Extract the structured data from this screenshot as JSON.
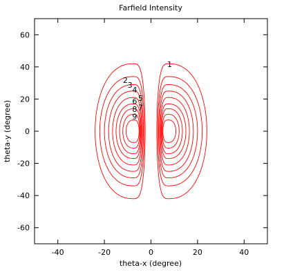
{
  "chart_data": {
    "type": "contour",
    "title": "Farfield Intensity",
    "xlabel": "theta-x (degree)",
    "ylabel": "theta-y (degree)",
    "xlim": [
      -50,
      50
    ],
    "ylim": [
      -70,
      70
    ],
    "xticks": [
      -40,
      -20,
      0,
      20,
      40
    ],
    "yticks": [
      -60,
      -40,
      -20,
      0,
      20,
      40,
      60
    ],
    "grid": false,
    "line_color": "#ff0000",
    "lobes": [
      {
        "center_x": -7.5,
        "inner_edge_x": -2.5
      },
      {
        "center_x": 7.5,
        "inner_edge_x": 2.5
      }
    ],
    "levels": [
      {
        "label": "1",
        "outer_half_width": 16.5,
        "half_height": 42
      },
      {
        "label": "2",
        "outer_half_width": 14.5,
        "half_height": 34
      },
      {
        "label": "3",
        "outer_half_width": 12.5,
        "half_height": 29
      },
      {
        "label": "4",
        "outer_half_width": 10.7,
        "half_height": 25
      },
      {
        "label": "5",
        "outer_half_width": 9.0,
        "half_height": 21
      },
      {
        "label": "6",
        "outer_half_width": 7.5,
        "half_height": 17
      },
      {
        "label": "7",
        "outer_half_width": 6.0,
        "half_height": 14
      },
      {
        "label": "8",
        "outer_half_width": 4.6,
        "half_height": 10.5
      },
      {
        "label": "9",
        "outer_half_width": 3.2,
        "half_height": 7
      }
    ],
    "contour_labels": [
      {
        "text": "1",
        "x": 8,
        "y": 40
      },
      {
        "text": "2",
        "x": -11,
        "y": 30
      },
      {
        "text": "3",
        "x": -9,
        "y": 27
      },
      {
        "text": "4",
        "x": -7,
        "y": 24
      },
      {
        "text": "5",
        "x": -4.5,
        "y": 19
      },
      {
        "text": "6",
        "x": -7,
        "y": 17
      },
      {
        "text": "7",
        "x": -4.5,
        "y": 13
      },
      {
        "text": "8",
        "x": -7,
        "y": 12
      },
      {
        "text": "9",
        "x": -7,
        "y": 7.5
      }
    ]
  }
}
